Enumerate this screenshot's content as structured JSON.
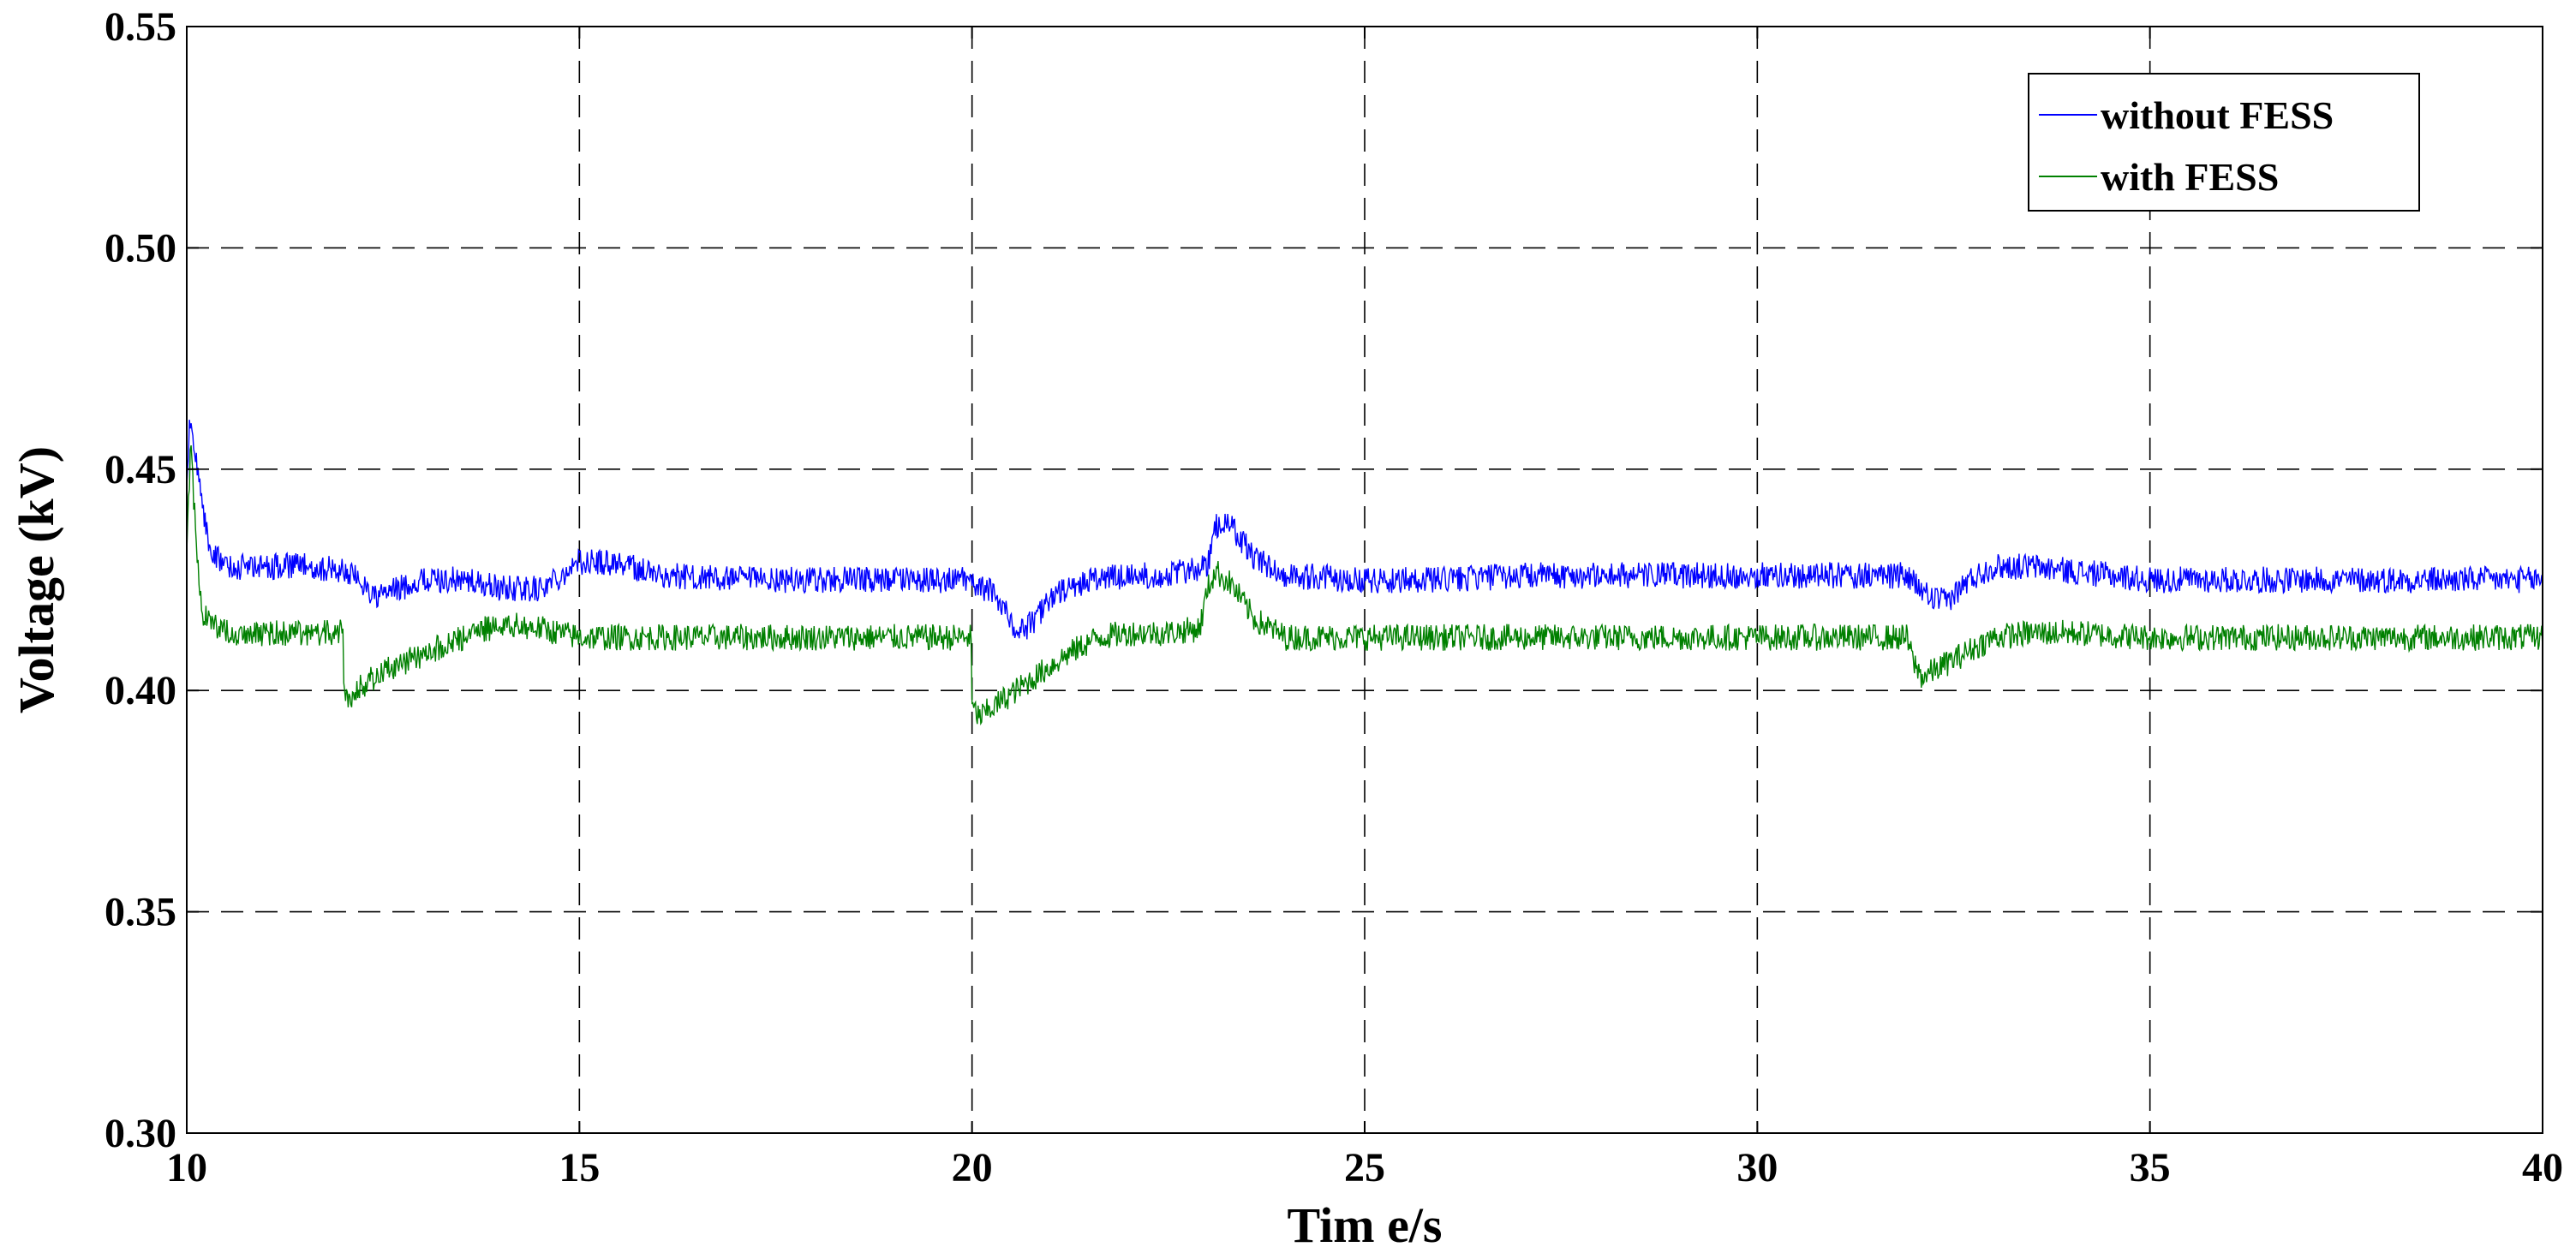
{
  "chart_data": {
    "type": "line",
    "xlabel": "Tim e/s",
    "ylabel": "Voltage (kV)",
    "xlim": [
      10,
      40
    ],
    "ylim": [
      0.3,
      0.55
    ],
    "xticks": [
      10,
      15,
      20,
      25,
      30,
      35,
      40
    ],
    "yticks": [
      0.3,
      0.35,
      0.4,
      0.45,
      0.5,
      0.55
    ],
    "xtick_labels": [
      "10",
      "15",
      "20",
      "25",
      "30",
      "35",
      "40"
    ],
    "ytick_labels": [
      "0.30",
      "0.35",
      "0.40",
      "0.45",
      "0.50",
      "0.55"
    ],
    "grid": true,
    "legend_position": "top-right",
    "series": [
      {
        "name": "without FESS",
        "color": "#0000ff",
        "noise": 0.003,
        "x": [
          10.0,
          10.05,
          10.1,
          10.2,
          10.3,
          10.5,
          11.0,
          11.5,
          12.0,
          12.2,
          12.4,
          12.7,
          13.0,
          13.5,
          14.0,
          14.5,
          15.0,
          15.5,
          16.0,
          17.0,
          18.0,
          19.0,
          19.9,
          20.0,
          20.3,
          20.6,
          20.8,
          21.0,
          21.5,
          22.0,
          22.5,
          23.0,
          23.1,
          23.3,
          23.6,
          24.0,
          25.0,
          26.0,
          27.0,
          28.0,
          29.0,
          30.0,
          31.0,
          31.9,
          32.0,
          32.2,
          32.4,
          32.7,
          33.0,
          33.5,
          34.0,
          35.0,
          36.0,
          37.0,
          38.0,
          39.0,
          40.0
        ],
        "y": [
          0.447,
          0.464,
          0.455,
          0.44,
          0.432,
          0.428,
          0.428,
          0.428,
          0.427,
          0.425,
          0.421,
          0.423,
          0.425,
          0.425,
          0.423,
          0.423,
          0.429,
          0.429,
          0.426,
          0.425,
          0.425,
          0.425,
          0.425,
          0.424,
          0.422,
          0.413,
          0.416,
          0.421,
          0.425,
          0.426,
          0.426,
          0.428,
          0.437,
          0.437,
          0.43,
          0.426,
          0.425,
          0.425,
          0.426,
          0.426,
          0.426,
          0.426,
          0.426,
          0.426,
          0.424,
          0.421,
          0.42,
          0.425,
          0.428,
          0.428,
          0.427,
          0.425,
          0.425,
          0.425,
          0.425,
          0.425,
          0.425
        ]
      },
      {
        "name": "with FESS",
        "color": "#008000",
        "noise": 0.003,
        "x": [
          10.0,
          10.05,
          10.1,
          10.15,
          10.2,
          10.3,
          10.5,
          11.0,
          11.5,
          11.99,
          12.0,
          12.05,
          12.3,
          12.6,
          13.0,
          13.5,
          14.0,
          14.5,
          15.0,
          16.0,
          17.0,
          18.0,
          19.0,
          19.99,
          20.0,
          20.1,
          20.4,
          20.8,
          21.2,
          21.6,
          22.0,
          22.5,
          22.9,
          23.0,
          23.1,
          23.3,
          23.6,
          24.0,
          25.0,
          26.0,
          27.0,
          28.0,
          29.0,
          30.0,
          31.0,
          31.9,
          32.0,
          32.1,
          32.3,
          32.6,
          33.0,
          33.5,
          34.0,
          35.0,
          36.0,
          37.0,
          38.0,
          39.0,
          40.0
        ],
        "y": [
          0.43,
          0.455,
          0.44,
          0.425,
          0.418,
          0.415,
          0.413,
          0.413,
          0.413,
          0.413,
          0.399,
          0.398,
          0.402,
          0.405,
          0.408,
          0.412,
          0.415,
          0.414,
          0.412,
          0.412,
          0.412,
          0.412,
          0.412,
          0.412,
          0.396,
          0.394,
          0.398,
          0.403,
          0.408,
          0.412,
          0.413,
          0.413,
          0.414,
          0.423,
          0.427,
          0.424,
          0.416,
          0.412,
          0.412,
          0.412,
          0.412,
          0.412,
          0.412,
          0.412,
          0.412,
          0.412,
          0.406,
          0.403,
          0.405,
          0.408,
          0.412,
          0.413,
          0.413,
          0.412,
          0.412,
          0.412,
          0.412,
          0.412,
          0.412
        ]
      }
    ]
  }
}
